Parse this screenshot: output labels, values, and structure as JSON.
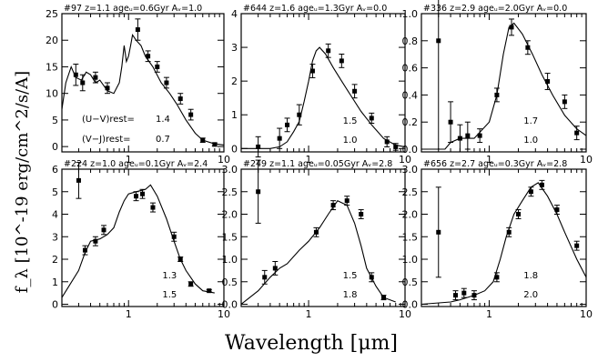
{
  "figure": {
    "ylabel": "f_λ [10^-19 erg/cm^2/s/A]",
    "xlabel": "Wavelength [μm]"
  },
  "chart_data": [
    {
      "type": "line",
      "title": "#97 z=1.1 age_w=0.6Gyr A_V=1.0",
      "xlog": true,
      "xlim": [
        0.2,
        10
      ],
      "ylim": [
        -1,
        25
      ],
      "xticks": [
        1,
        10
      ],
      "xtick_labels": [
        "1",
        "10"
      ],
      "yticks": [
        0,
        5,
        10,
        15,
        20,
        25
      ],
      "ytick_labels": [
        "0",
        "5",
        "10",
        "15",
        "20",
        "25"
      ],
      "annotations": [
        "(U−V)rest=",
        "1.4",
        "(V−J)rest=",
        "0.7"
      ],
      "model": [
        [
          0.2,
          7
        ],
        [
          0.22,
          12
        ],
        [
          0.25,
          15
        ],
        [
          0.28,
          13
        ],
        [
          0.32,
          12.5
        ],
        [
          0.36,
          14
        ],
        [
          0.4,
          13.5
        ],
        [
          0.45,
          12
        ],
        [
          0.5,
          12.5
        ],
        [
          0.6,
          10.5
        ],
        [
          0.7,
          10
        ],
        [
          0.8,
          12
        ],
        [
          0.85,
          15
        ],
        [
          0.9,
          19
        ],
        [
          0.95,
          16
        ],
        [
          1.0,
          17
        ],
        [
          1.05,
          19
        ],
        [
          1.1,
          21
        ],
        [
          1.2,
          20
        ],
        [
          1.35,
          19
        ],
        [
          1.5,
          17
        ],
        [
          1.8,
          15
        ],
        [
          2.2,
          12
        ],
        [
          2.7,
          10
        ],
        [
          3.2,
          8
        ],
        [
          4,
          5
        ],
        [
          5,
          2.5
        ],
        [
          6,
          1.2
        ],
        [
          8,
          0.5
        ],
        [
          10,
          0.3
        ]
      ],
      "points": [
        [
          0.28,
          13.5,
          2
        ],
        [
          0.33,
          12.0,
          1.5
        ],
        [
          0.45,
          13.0,
          1
        ],
        [
          0.6,
          11.0,
          1
        ],
        [
          1.25,
          22.0,
          2
        ],
        [
          1.6,
          17.0,
          1
        ],
        [
          2.0,
          15.0,
          1
        ],
        [
          2.5,
          12.0,
          1
        ],
        [
          3.5,
          9.0,
          1
        ],
        [
          4.5,
          6.0,
          1
        ],
        [
          6.0,
          1.2,
          0.4
        ],
        [
          8.0,
          0.4,
          0.3
        ]
      ]
    },
    {
      "type": "line",
      "title": "#644 z=1.6 age_w=1.3Gyr A_V=0.0",
      "xlog": true,
      "xlim": [
        0.2,
        10
      ],
      "ylim": [
        -0.1,
        4
      ],
      "xticks": [
        1,
        10
      ],
      "xtick_labels": [
        "1",
        "10"
      ],
      "yticks": [
        0,
        1,
        2,
        3,
        4
      ],
      "ytick_labels": [
        "0",
        "1",
        "2",
        "3",
        "4"
      ],
      "annotations": [
        "1.5",
        "1.0"
      ],
      "model": [
        [
          0.2,
          0
        ],
        [
          0.4,
          0
        ],
        [
          0.5,
          0.05
        ],
        [
          0.6,
          0.2
        ],
        [
          0.7,
          0.5
        ],
        [
          0.8,
          0.8
        ],
        [
          0.9,
          1.4
        ],
        [
          1.0,
          2.0
        ],
        [
          1.1,
          2.6
        ],
        [
          1.2,
          2.9
        ],
        [
          1.3,
          3.0
        ],
        [
          1.5,
          2.8
        ],
        [
          1.8,
          2.4
        ],
        [
          2.2,
          2.0
        ],
        [
          2.7,
          1.6
        ],
        [
          3.5,
          1.1
        ],
        [
          4.5,
          0.7
        ],
        [
          6,
          0.3
        ],
        [
          8,
          0.1
        ],
        [
          10,
          0.05
        ]
      ],
      "points": [
        [
          0.3,
          0.05,
          0.3
        ],
        [
          0.5,
          0.3,
          0.3
        ],
        [
          0.6,
          0.7,
          0.2
        ],
        [
          0.8,
          1.0,
          0.3
        ],
        [
          1.1,
          2.3,
          0.2
        ],
        [
          1.6,
          2.9,
          0.2
        ],
        [
          2.2,
          2.6,
          0.2
        ],
        [
          3.0,
          1.7,
          0.2
        ],
        [
          4.5,
          0.9,
          0.15
        ],
        [
          6.5,
          0.2,
          0.15
        ],
        [
          8.0,
          0.05,
          0.1
        ]
      ]
    },
    {
      "type": "line",
      "title": "#336 z=2.9 age_w=2.0Gyr A_V=0.0",
      "xlog": true,
      "xlim": [
        0.2,
        10
      ],
      "ylim": [
        -0.02,
        1.0
      ],
      "xticks": [
        1,
        10
      ],
      "xtick_labels": [
        "1",
        "10"
      ],
      "yticks": [
        0.0,
        0.2,
        0.4,
        0.6,
        0.8,
        1.0
      ],
      "ytick_labels": [
        "0.0",
        "0.2",
        "0.4",
        "0.6",
        "0.8",
        "1.0"
      ],
      "annotations": [
        "1.7",
        "1.0"
      ],
      "model": [
        [
          0.2,
          0
        ],
        [
          0.35,
          0
        ],
        [
          0.4,
          0.05
        ],
        [
          0.5,
          0.08
        ],
        [
          0.7,
          0.08
        ],
        [
          1.0,
          0.2
        ],
        [
          1.2,
          0.4
        ],
        [
          1.4,
          0.7
        ],
        [
          1.6,
          0.9
        ],
        [
          1.8,
          0.93
        ],
        [
          2.2,
          0.85
        ],
        [
          2.8,
          0.7
        ],
        [
          3.5,
          0.55
        ],
        [
          4.5,
          0.4
        ],
        [
          6,
          0.25
        ],
        [
          8,
          0.15
        ],
        [
          10,
          0.1
        ]
      ],
      "points": [
        [
          0.3,
          0.8,
          0.8
        ],
        [
          0.4,
          0.2,
          0.15
        ],
        [
          0.5,
          0.08,
          0.1
        ],
        [
          0.6,
          0.1,
          0.1
        ],
        [
          0.8,
          0.1,
          0.05
        ],
        [
          1.2,
          0.4,
          0.05
        ],
        [
          1.7,
          0.9,
          0.06
        ],
        [
          2.5,
          0.75,
          0.05
        ],
        [
          4.0,
          0.5,
          0.06
        ],
        [
          6.0,
          0.35,
          0.05
        ],
        [
          8.0,
          0.12,
          0.05
        ]
      ]
    },
    {
      "type": "line",
      "title": "#224 z=1.0 age_w=0.1Gyr A_V=2.4",
      "xlog": true,
      "xlim": [
        0.2,
        10
      ],
      "ylim": [
        -0.1,
        6
      ],
      "xticks": [
        1,
        10
      ],
      "xtick_labels": [
        "1",
        "10"
      ],
      "yticks": [
        0,
        1,
        2,
        3,
        4,
        5,
        6
      ],
      "ytick_labels": [
        "0",
        "1",
        "2",
        "3",
        "4",
        "5",
        "6"
      ],
      "annotations": [
        "1.3",
        "1.5"
      ],
      "model": [
        [
          0.2,
          0.3
        ],
        [
          0.3,
          1.5
        ],
        [
          0.35,
          2.3
        ],
        [
          0.4,
          2.8
        ],
        [
          0.5,
          2.9
        ],
        [
          0.6,
          3.1
        ],
        [
          0.7,
          3.4
        ],
        [
          0.8,
          4.1
        ],
        [
          0.9,
          4.6
        ],
        [
          1.0,
          4.9
        ],
        [
          1.2,
          5.0
        ],
        [
          1.5,
          5.1
        ],
        [
          1.7,
          5.3
        ],
        [
          2.0,
          4.8
        ],
        [
          2.5,
          3.8
        ],
        [
          3.0,
          2.8
        ],
        [
          3.5,
          2.0
        ],
        [
          4.0,
          1.5
        ],
        [
          5,
          0.9
        ],
        [
          6,
          0.6
        ],
        [
          8,
          0.5
        ]
      ],
      "points": [
        [
          0.3,
          5.5,
          0.8
        ],
        [
          0.35,
          2.4,
          0.2
        ],
        [
          0.45,
          2.8,
          0.2
        ],
        [
          0.55,
          3.3,
          0.2
        ],
        [
          1.2,
          4.8,
          0.2
        ],
        [
          1.4,
          4.9,
          0.2
        ],
        [
          1.8,
          4.3,
          0.2
        ],
        [
          3.0,
          3.0,
          0.2
        ],
        [
          3.5,
          2.0,
          0.1
        ],
        [
          4.5,
          0.9,
          0.1
        ],
        [
          7.0,
          0.6,
          0.05
        ]
      ]
    },
    {
      "type": "line",
      "title": "#249 z=1.1 age_w=0.05Gyr A_V=2.8",
      "xlog": true,
      "xlim": [
        0.2,
        10
      ],
      "ylim": [
        -0.05,
        3.0
      ],
      "xticks": [
        1,
        10
      ],
      "xtick_labels": [
        "1",
        "10"
      ],
      "yticks": [
        0.0,
        0.5,
        1.0,
        1.5,
        2.0,
        2.5,
        3.0
      ],
      "ytick_labels": [
        "0.0",
        "0.5",
        "1.0",
        "1.5",
        "2.0",
        "2.5",
        "3.0"
      ],
      "annotations": [
        "1.5",
        "1.8"
      ],
      "model": [
        [
          0.2,
          0
        ],
        [
          0.3,
          0.3
        ],
        [
          0.4,
          0.6
        ],
        [
          0.5,
          0.8
        ],
        [
          0.6,
          0.9
        ],
        [
          0.8,
          1.2
        ],
        [
          1.0,
          1.4
        ],
        [
          1.3,
          1.7
        ],
        [
          1.6,
          2.0
        ],
        [
          2.0,
          2.3
        ],
        [
          2.5,
          2.2
        ],
        [
          3.0,
          1.8
        ],
        [
          3.5,
          1.3
        ],
        [
          4.0,
          0.8
        ],
        [
          5,
          0.4
        ],
        [
          6,
          0.15
        ],
        [
          8,
          0.05
        ]
      ],
      "points": [
        [
          0.3,
          2.5,
          0.7
        ],
        [
          0.35,
          0.6,
          0.15
        ],
        [
          0.45,
          0.8,
          0.15
        ],
        [
          1.2,
          1.6,
          0.1
        ],
        [
          1.8,
          2.2,
          0.1
        ],
        [
          2.5,
          2.3,
          0.1
        ],
        [
          3.5,
          2.0,
          0.1
        ],
        [
          4.5,
          0.6,
          0.1
        ],
        [
          6.0,
          0.15,
          0.05
        ]
      ]
    },
    {
      "type": "line",
      "title": "#656 z=2.7 age_w=0.3Gyr A_V=2.8",
      "xlog": true,
      "xlim": [
        0.2,
        10
      ],
      "ylim": [
        -0.05,
        3.0
      ],
      "xticks": [
        1,
        10
      ],
      "xtick_labels": [
        "1",
        "10"
      ],
      "yticks": [
        0.0,
        0.5,
        1.0,
        1.5,
        2.0,
        2.5,
        3.0
      ],
      "ytick_labels": [
        "0.0",
        "0.5",
        "1.0",
        "1.5",
        "2.0",
        "2.5",
        "3.0"
      ],
      "annotations": [
        "1.8",
        "2.0"
      ],
      "model": [
        [
          0.2,
          0
        ],
        [
          0.4,
          0.05
        ],
        [
          0.5,
          0.1
        ],
        [
          0.7,
          0.2
        ],
        [
          0.9,
          0.3
        ],
        [
          1.1,
          0.5
        ],
        [
          1.3,
          1.0
        ],
        [
          1.5,
          1.5
        ],
        [
          1.8,
          2.0
        ],
        [
          2.2,
          2.3
        ],
        [
          2.7,
          2.6
        ],
        [
          3.2,
          2.7
        ],
        [
          4.0,
          2.4
        ],
        [
          5,
          2.0
        ],
        [
          6,
          1.6
        ],
        [
          8,
          1.0
        ],
        [
          10,
          0.6
        ]
      ],
      "points": [
        [
          0.3,
          1.6,
          1.0
        ],
        [
          0.45,
          0.2,
          0.1
        ],
        [
          0.55,
          0.25,
          0.1
        ],
        [
          0.7,
          0.2,
          0.1
        ],
        [
          1.2,
          0.6,
          0.1
        ],
        [
          1.6,
          1.6,
          0.1
        ],
        [
          2.0,
          2.0,
          0.1
        ],
        [
          2.7,
          2.5,
          0.1
        ],
        [
          3.5,
          2.65,
          0.1
        ],
        [
          5.0,
          2.1,
          0.1
        ],
        [
          8.0,
          1.3,
          0.1
        ]
      ]
    }
  ]
}
